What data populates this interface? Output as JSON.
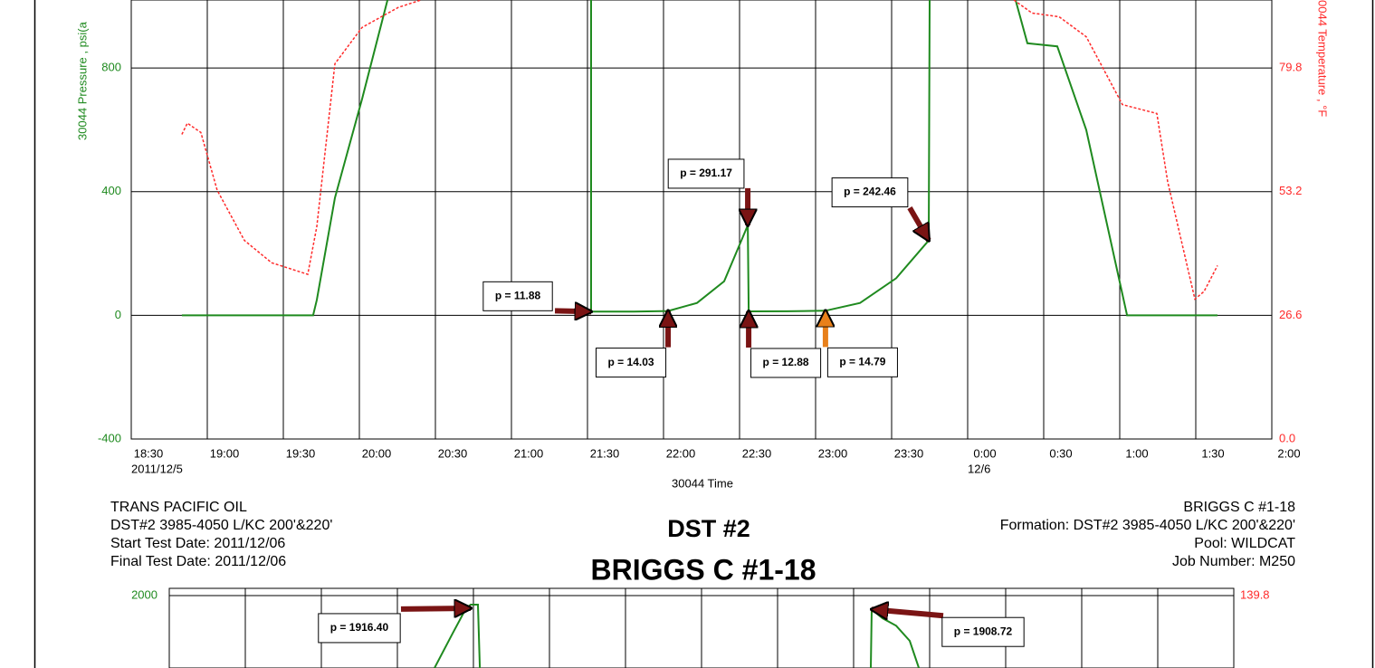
{
  "header": {
    "left": [
      "TRANS PACIFIC OIL",
      "DST#2 3985-4050 L/KC 200'&220'",
      "Start Test Date: 2011/12/06",
      "Final Test Date: 2011/12/06"
    ],
    "center": [
      "DST #2",
      "BRIGGS C #1-18"
    ],
    "right": [
      "BRIGGS C #1-18",
      "Formation: DST#2 3985-4050 L/KC 200'&220'",
      "Pool: WILDCAT",
      "Job Number: M250"
    ]
  },
  "chart_data": [
    {
      "type": "line",
      "x_label": "30044 Time",
      "y_label": "30044 Pressure , psi(a",
      "y2_label": "0044 Temperature , °F",
      "xlim": [
        18.5,
        26
      ],
      "xticks": [
        {
          "value": 18.5,
          "label": "18:30"
        },
        {
          "value": 19,
          "label": "19:00"
        },
        {
          "value": 19.5,
          "label": "19:30"
        },
        {
          "value": 20,
          "label": "20:00"
        },
        {
          "value": 20.5,
          "label": "20:30"
        },
        {
          "value": 21,
          "label": "21:00"
        },
        {
          "value": 21.5,
          "label": "21:30"
        },
        {
          "value": 22,
          "label": "22:00"
        },
        {
          "value": 22.5,
          "label": "22:30"
        },
        {
          "value": 23,
          "label": "23:00"
        },
        {
          "value": 23.5,
          "label": "23:30"
        },
        {
          "value": 24,
          "label": "0:00"
        },
        {
          "value": 24.5,
          "label": "0:30"
        },
        {
          "value": 25,
          "label": "1:00"
        },
        {
          "value": 25.5,
          "label": "1:30"
        },
        {
          "value": 26,
          "label": "2:00"
        }
      ],
      "date_labels": [
        {
          "value": 18.5,
          "label": "2011/12/5"
        },
        {
          "value": 24,
          "label": "12/6"
        }
      ],
      "xtick_labels": true,
      "ylim": [
        -400,
        1020
      ],
      "yticks": [
        -400,
        0,
        400,
        800
      ],
      "y2lim": [
        0,
        94.4
      ],
      "y2ticks": [
        {
          "value": 0,
          "label": "0.0"
        },
        26.6,
        53.2,
        79.8
      ],
      "grid": true,
      "series": [
        {
          "color": "#1f8a1f",
          "x": [
            18.833,
            19.363,
            19.696,
            19.72,
            19.839,
            20.018,
            20.185,
            null,
            21.524,
            21.524,
            21.804,
            22.03,
            22.22,
            22.399,
            22.554,
            22.56,
            22.815,
            23.065,
            23.292,
            23.53,
            23.744,
            23.75,
            null,
            24.315,
            24.393,
            24.589,
            24.78,
            25.048,
            25.643
          ],
          "values": [
            0,
            0,
            0,
            50,
            380,
            700,
            1020,
            null,
            1020,
            11.88,
            12,
            14.03,
            40,
            110,
            291.17,
            12.88,
            13,
            14.79,
            40,
            120,
            242.46,
            1020,
            null,
            1020,
            880,
            870,
            600,
            0,
            0
          ]
        },
        {
          "color": "#ff2a2a",
          "axis": "y2",
          "dashed": true,
          "x": [
            18.833,
            18.869,
            18.958,
            19.065,
            19.244,
            19.423,
            19.661,
            19.72,
            19.839,
            20.018,
            20.256,
            20.405,
            null,
            24.304,
            24.423,
            24.601,
            24.78,
            25.018,
            25.244,
            25.315,
            25.494,
            25.554,
            25.643
          ],
          "values": [
            65.5,
            67.9,
            65.9,
            53.5,
            42.7,
            37.9,
            35.4,
            45.7,
            80.7,
            88.5,
            92.8,
            94.4,
            null,
            94.4,
            91.6,
            90.8,
            86.5,
            71.9,
            70,
            55.4,
            30.1,
            31.7,
            37.3
          ]
        }
      ],
      "annotations": [
        {
          "text": "p = 11.88",
          "x": 21.524,
          "value": 11.88,
          "color": "#7a1414"
        },
        {
          "text": "p = 14.03",
          "x": 22.03,
          "value": 14.03,
          "color": "#7a1414"
        },
        {
          "text": "p = 291.17",
          "x": 22.554,
          "value": 291.17,
          "color": "#7a1414"
        },
        {
          "text": "p = 12.88",
          "x": 22.56,
          "value": 12.88,
          "color": "#7a1414"
        },
        {
          "text": "p = 14.79",
          "x": 23.065,
          "value": 14.79,
          "color": "#e8801a"
        },
        {
          "text": "p = 242.46",
          "x": 23.744,
          "value": 242.46,
          "color": "#7a1414"
        }
      ]
    },
    {
      "type": "line",
      "xlim": [
        18.5,
        25.5
      ],
      "xticks": [
        18.5,
        19,
        19.5,
        20,
        20.5,
        21,
        21.5,
        22,
        22.5,
        23,
        23.5,
        24,
        24.5,
        25,
        25.5
      ],
      "xtick_labels": false,
      "ylim": [
        1520,
        2048
      ],
      "yticks": [
        2000
      ],
      "y2lim": [
        127.8,
        141
      ],
      "y2ticks": [
        139.8
      ],
      "grid": true,
      "series": [
        {
          "color": "#1f8a1f",
          "x": [
            20.244,
            20.363,
            20.452,
            20.482,
            20.53,
            20.542,
            null,
            23.113,
            23.119,
            23.19,
            23.28,
            23.369,
            23.429
          ],
          "values": [
            1520,
            1749,
            1916.4,
            1940,
            1940,
            1520,
            null,
            1520,
            1908.72,
            1850,
            1800,
            1700,
            1520
          ]
        }
      ],
      "annotations": [
        {
          "text": "p = 1916.40",
          "x": 20.482,
          "value": 1916.4,
          "color": "#7a1414"
        },
        {
          "text": "p = 1908.72",
          "x": 23.119,
          "value": 1908.72,
          "color": "#7a1414"
        }
      ]
    }
  ]
}
